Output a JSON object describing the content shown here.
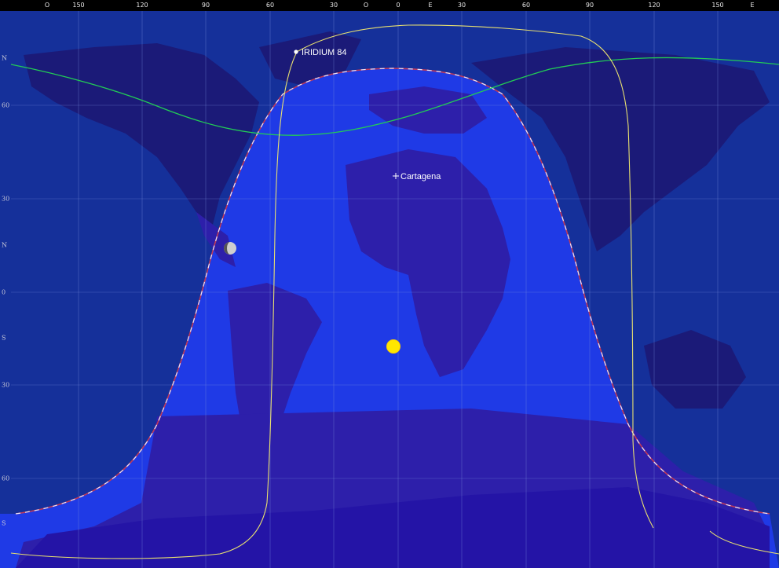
{
  "top_axis": {
    "left_hemisphere": "O",
    "right_hemisphere": "E",
    "ticks": [
      "150",
      "120",
      "90",
      "60",
      "30",
      "O",
      "0",
      "E",
      "30",
      "60",
      "90",
      "120",
      "150"
    ]
  },
  "left_axis": {
    "north": "N",
    "south": "S",
    "ticks": [
      "60",
      "30",
      "0",
      "30",
      "60"
    ]
  },
  "satellite": {
    "name": "IRIDIUM 84",
    "lon": -70,
    "lat": 76
  },
  "observer": {
    "name": "Cartagena",
    "lon": -1,
    "lat": 37.6
  },
  "sun": {
    "lon": -2,
    "lat": -17.5
  },
  "moon": {
    "lon": -78,
    "lat": 13.5
  },
  "colors": {
    "ocean_day": "#1f3ae6",
    "land_day": "#2d1faa",
    "ocean_night": "#15309a",
    "land_night": "#1b1a78",
    "terminator": "#c23a5a",
    "grid": "#7a90e0",
    "satellite_track": "#e8e070",
    "orbit_track": "#22cc55",
    "sun": "#ffe600"
  }
}
